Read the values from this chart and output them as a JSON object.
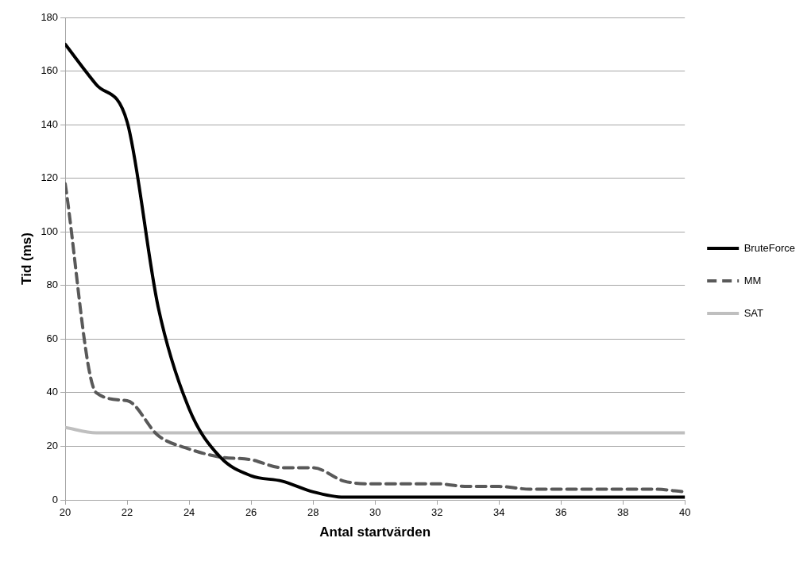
{
  "chart_data": {
    "type": "line",
    "xlabel": "Antal startvärden",
    "ylabel": "Tid (ms)",
    "x": [
      20,
      21,
      22,
      23,
      24,
      25,
      26,
      27,
      28,
      29,
      30,
      31,
      32,
      33,
      34,
      35,
      36,
      37,
      38,
      39,
      40
    ],
    "series": [
      {
        "name": "BruteForce",
        "color": "#000000",
        "line_style": "solid",
        "values": [
          170,
          155,
          141,
          72,
          34,
          16,
          9,
          7,
          3,
          1,
          1,
          1,
          1,
          1,
          1,
          1,
          1,
          1,
          1,
          1,
          1
        ]
      },
      {
        "name": "MM",
        "color": "#595959",
        "line_style": "dashed",
        "values": [
          118,
          40,
          37,
          24,
          19,
          16,
          15,
          12,
          12,
          7,
          6,
          6,
          6,
          5,
          5,
          4,
          4,
          4,
          4,
          4,
          3
        ]
      },
      {
        "name": "SAT",
        "color": "#bfbfbf",
        "line_style": "solid",
        "values": [
          27,
          25,
          25,
          25,
          25,
          25,
          25,
          25,
          25,
          25,
          25,
          25,
          25,
          25,
          25,
          25,
          25,
          25,
          25,
          25,
          25
        ]
      }
    ],
    "xlim": [
      20,
      40
    ],
    "xticks": [
      20,
      22,
      24,
      26,
      28,
      30,
      32,
      34,
      36,
      38,
      40
    ],
    "ylim": [
      0,
      180
    ],
    "yticks": [
      0,
      20,
      40,
      60,
      80,
      100,
      120,
      140,
      160,
      180
    ],
    "grid": "y",
    "legend": "right",
    "marker": "none"
  }
}
